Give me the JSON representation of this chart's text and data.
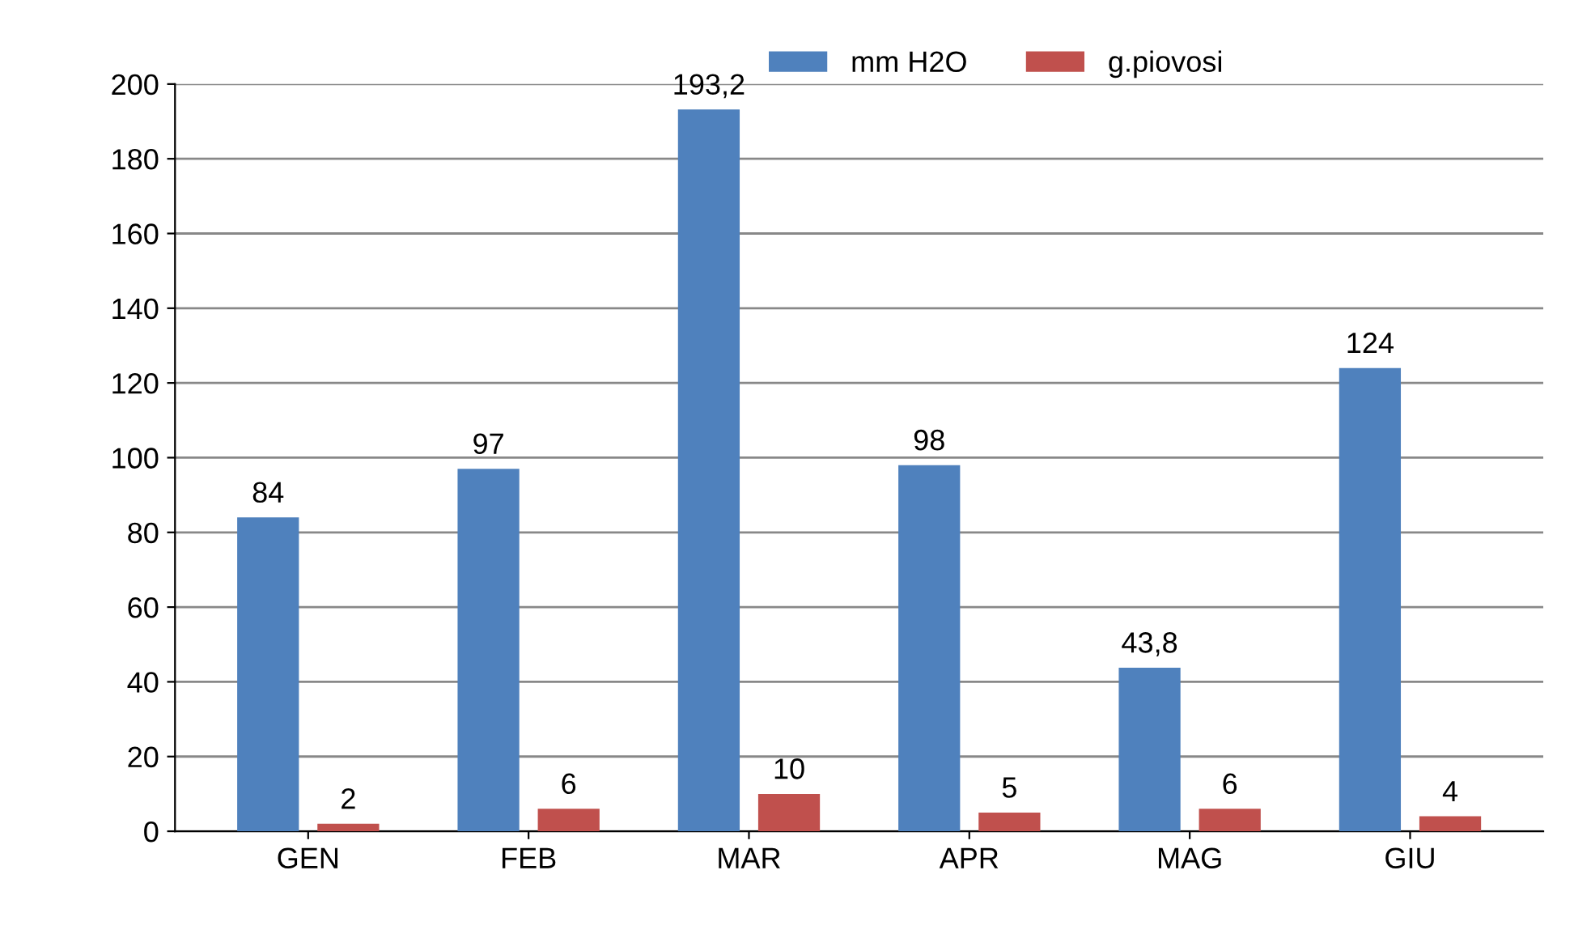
{
  "chart_data": {
    "type": "bar",
    "categories": [
      "GEN",
      "FEB",
      "MAR",
      "APR",
      "MAG",
      "GIU"
    ],
    "series": [
      {
        "name": "mm H2O",
        "color": "#4f81bd",
        "values": [
          84,
          97,
          193.2,
          98,
          43.8,
          124
        ],
        "value_labels": [
          "84",
          "97",
          "193,2",
          "98",
          "43,8",
          "124"
        ]
      },
      {
        "name": "g.piovosi",
        "color": "#c0504d",
        "values": [
          2,
          6,
          10,
          5,
          6,
          4
        ],
        "value_labels": [
          "2",
          "6",
          "10",
          "5",
          "6",
          "4"
        ]
      }
    ],
    "ylim": [
      0,
      200
    ],
    "yticks": [
      0,
      20,
      40,
      60,
      80,
      100,
      120,
      140,
      160,
      180,
      200
    ],
    "grid": "y",
    "legend": "top"
  }
}
